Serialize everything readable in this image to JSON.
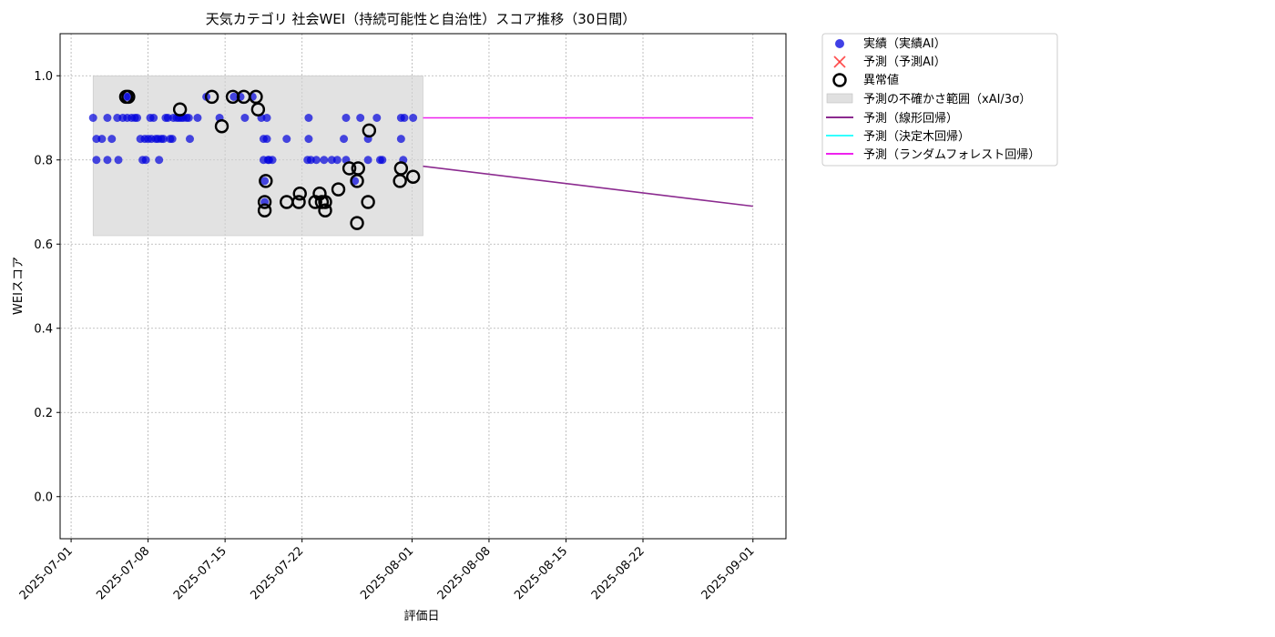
{
  "chart_data": {
    "type": "scatter",
    "title": "天気カテゴリ 社会WEI（持続可能性と自治性）スコア推移（30日間）",
    "xlabel": "評価日",
    "ylabel": "WEIスコア",
    "x_ticks": [
      "2025-07-01",
      "2025-07-08",
      "2025-07-15",
      "2025-07-22",
      "2025-08-01",
      "2025-08-08",
      "2025-08-15",
      "2025-08-22",
      "2025-09-01"
    ],
    "y_ticks": [
      "0.0",
      "0.2",
      "0.4",
      "0.6",
      "0.8",
      "1.0"
    ],
    "ylim": [
      -0.1,
      1.1
    ],
    "xlim": [
      "2025-06-30",
      "2025-09-04"
    ],
    "grid": true,
    "legend_position": "outside top-right",
    "colors": {
      "actual": "#0000dd",
      "predicted": "#ff3333",
      "anomaly": "#000000",
      "band": "#d3d3d3",
      "linear": "#8b2a8f",
      "tree": "#33ffff",
      "forest": "#ee22ee"
    },
    "legend": [
      {
        "key": "actual",
        "label": "実績（実績AI）"
      },
      {
        "key": "predicted",
        "label": "予測（予測AI）"
      },
      {
        "key": "anomaly",
        "label": "異常値"
      },
      {
        "key": "band",
        "label": "予測の不確かさ範囲（xAI/3σ）"
      },
      {
        "key": "linear",
        "label": "予測（線形回帰）"
      },
      {
        "key": "tree",
        "label": "予測（決定木回帰）"
      },
      {
        "key": "forest",
        "label": "予測（ランダムフォレスト回帰）"
      }
    ],
    "uncertainty_band": {
      "x_start": "2025-07-03",
      "x_end": "2025-08-02",
      "y_low": 0.62,
      "y_high": 1.0
    },
    "series": [
      {
        "name": "実績（実績AI）",
        "type": "scatter",
        "points": [
          [
            "2025-07-03",
            0.9
          ],
          [
            "2025-07-03.3",
            0.85
          ],
          [
            "2025-07-03.3",
            0.8
          ],
          [
            "2025-07-03.8",
            0.85
          ],
          [
            "2025-07-04.3",
            0.9
          ],
          [
            "2025-07-04.3",
            0.8
          ],
          [
            "2025-07-04.7",
            0.85
          ],
          [
            "2025-07-05.2",
            0.9
          ],
          [
            "2025-07-05.3",
            0.8
          ],
          [
            "2025-07-05.7",
            0.9
          ],
          [
            "2025-07-06.0",
            0.95
          ],
          [
            "2025-07-06.1",
            0.9
          ],
          [
            "2025-07-06.2",
            0.95
          ],
          [
            "2025-07-06.5",
            0.9
          ],
          [
            "2025-07-06.8",
            0.9
          ],
          [
            "2025-07-07.0",
            0.9
          ],
          [
            "2025-07-07.3",
            0.85
          ],
          [
            "2025-07-07.5",
            0.8
          ],
          [
            "2025-07-07.7",
            0.85
          ],
          [
            "2025-07-07.8",
            0.8
          ],
          [
            "2025-07-08.0",
            0.85
          ],
          [
            "2025-07-08.2",
            0.9
          ],
          [
            "2025-07-08.3",
            0.85
          ],
          [
            "2025-07-08.5",
            0.9
          ],
          [
            "2025-07-08.7",
            0.85
          ],
          [
            "2025-07-08.9",
            0.85
          ],
          [
            "2025-07-09.0",
            0.8
          ],
          [
            "2025-07-09.2",
            0.85
          ],
          [
            "2025-07-09.4",
            0.85
          ],
          [
            "2025-07-09.6",
            0.9
          ],
          [
            "2025-07-09.8",
            0.9
          ],
          [
            "2025-07-10.0",
            0.85
          ],
          [
            "2025-07-10.2",
            0.85
          ],
          [
            "2025-07-10.3",
            0.9
          ],
          [
            "2025-07-10.6",
            0.9
          ],
          [
            "2025-07-10.8",
            0.9
          ],
          [
            "2025-07-11.0",
            0.9
          ],
          [
            "2025-07-11.2",
            0.9
          ],
          [
            "2025-07-11.5",
            0.9
          ],
          [
            "2025-07-11.7",
            0.9
          ],
          [
            "2025-07-11.8",
            0.85
          ],
          [
            "2025-07-12.5",
            0.9
          ],
          [
            "2025-07-13.3",
            0.95
          ],
          [
            "2025-07-14.5",
            0.9
          ],
          [
            "2025-07-15.8",
            0.95
          ],
          [
            "2025-07-16.4",
            0.95
          ],
          [
            "2025-07-16.8",
            0.9
          ],
          [
            "2025-07-17.5",
            0.95
          ],
          [
            "2025-07-18.3",
            0.9
          ],
          [
            "2025-07-18.5",
            0.85
          ],
          [
            "2025-07-18.5",
            0.8
          ],
          [
            "2025-07-18.6",
            0.75
          ],
          [
            "2025-07-18.6",
            0.7
          ],
          [
            "2025-07-18.8",
            0.9
          ],
          [
            "2025-07-18.8",
            0.85
          ],
          [
            "2025-07-18.9",
            0.8
          ],
          [
            "2025-07-19.0",
            0.8
          ],
          [
            "2025-07-19.3",
            0.8
          ],
          [
            "2025-07-20.6",
            0.85
          ],
          [
            "2025-07-22.5",
            0.8
          ],
          [
            "2025-07-22.6",
            0.9
          ],
          [
            "2025-07-22.6",
            0.85
          ],
          [
            "2025-07-22.8",
            0.8
          ],
          [
            "2025-07-23.3",
            0.8
          ],
          [
            "2025-07-24.0",
            0.8
          ],
          [
            "2025-07-24.7",
            0.8
          ],
          [
            "2025-07-25.2",
            0.8
          ],
          [
            "2025-07-25.8",
            0.85
          ],
          [
            "2025-07-26.0",
            0.9
          ],
          [
            "2025-07-26.0",
            0.8
          ],
          [
            "2025-07-26.8",
            0.75
          ],
          [
            "2025-07-27.3",
            0.9
          ],
          [
            "2025-07-28.0",
            0.85
          ],
          [
            "2025-07-28.0",
            0.8
          ],
          [
            "2025-07-28.8",
            0.9
          ],
          [
            "2025-07-29.1",
            0.8
          ],
          [
            "2025-07-29.3",
            0.8
          ],
          [
            "2025-07-31.0",
            0.85
          ],
          [
            "2025-07-31.0",
            0.9
          ],
          [
            "2025-07-31.2",
            0.8
          ],
          [
            "2025-07-31.3",
            0.9
          ],
          [
            "2025-08-01.1",
            0.9
          ]
        ]
      },
      {
        "name": "異常値",
        "type": "anomaly",
        "points": [
          [
            "2025-07-06.0",
            0.95
          ],
          [
            "2025-07-06.2",
            0.95
          ],
          [
            "2025-07-10.9",
            0.92
          ],
          [
            "2025-07-13.8",
            0.95
          ],
          [
            "2025-07-14.7",
            0.88
          ],
          [
            "2025-07-15.7",
            0.95
          ],
          [
            "2025-07-16.7",
            0.95
          ],
          [
            "2025-07-17.8",
            0.95
          ],
          [
            "2025-07-18.0",
            0.92
          ],
          [
            "2025-07-18.7",
            0.75
          ],
          [
            "2025-07-18.6",
            0.7
          ],
          [
            "2025-07-18.6",
            0.68
          ],
          [
            "2025-07-20.6",
            0.7
          ],
          [
            "2025-07-21.7",
            0.7
          ],
          [
            "2025-07-21.8",
            0.72
          ],
          [
            "2025-07-23.2",
            0.7
          ],
          [
            "2025-07-23.6",
            0.72
          ],
          [
            "2025-07-23.8",
            0.7
          ],
          [
            "2025-07-24.1",
            0.7
          ],
          [
            "2025-07-24.1",
            0.68
          ],
          [
            "2025-07-25.3",
            0.73
          ],
          [
            "2025-07-26.3",
            0.78
          ],
          [
            "2025-07-27.0",
            0.75
          ],
          [
            "2025-07-27.1",
            0.78
          ],
          [
            "2025-07-27.0",
            0.65
          ],
          [
            "2025-07-28.0",
            0.7
          ],
          [
            "2025-07-28.1",
            0.87
          ],
          [
            "2025-07-30.9",
            0.75
          ],
          [
            "2025-07-31.0",
            0.78
          ],
          [
            "2025-08-01.1",
            0.76
          ]
        ]
      },
      {
        "name": "予測（線形回帰）",
        "type": "line",
        "points": [
          [
            "2025-08-02",
            0.785
          ],
          [
            "2025-09-01",
            0.69
          ]
        ]
      },
      {
        "name": "予測（ランダムフォレスト回帰）",
        "type": "line",
        "points": [
          [
            "2025-08-02",
            0.9
          ],
          [
            "2025-09-01",
            0.9
          ]
        ]
      }
    ]
  }
}
